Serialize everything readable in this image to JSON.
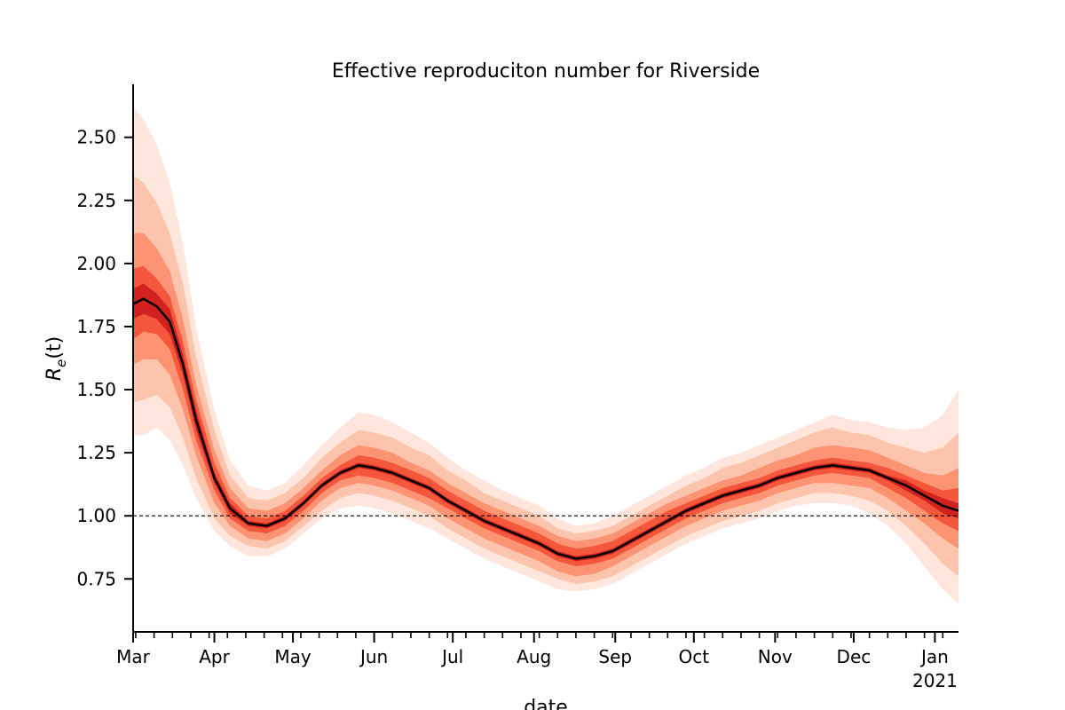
{
  "chart_data": {
    "type": "line",
    "title": "Effective reproduciton number for Riverside",
    "xlabel": "date",
    "ylabel": "R_e(t)",
    "ylabel_parts": {
      "base": "R",
      "subscript": "e",
      "args": "(t)"
    },
    "xlim": [
      "2020-03-01",
      "2021-01-10"
    ],
    "ylim": [
      0.54,
      2.71
    ],
    "y_ticks": [
      "0.75",
      "1.00",
      "1.25",
      "1.50",
      "1.75",
      "2.00",
      "2.25",
      "2.50"
    ],
    "x_major_ticks": [
      {
        "date": "2020-03-01",
        "label": "Mar"
      },
      {
        "date": "2020-04-01",
        "label": "Apr"
      },
      {
        "date": "2020-05-01",
        "label": "May"
      },
      {
        "date": "2020-06-01",
        "label": "Jun"
      },
      {
        "date": "2020-07-01",
        "label": "Jul"
      },
      {
        "date": "2020-08-01",
        "label": "Aug"
      },
      {
        "date": "2020-09-01",
        "label": "Sep"
      },
      {
        "date": "2020-10-01",
        "label": "Oct"
      },
      {
        "date": "2020-11-01",
        "label": "Nov"
      },
      {
        "date": "2020-12-01",
        "label": "Dec"
      },
      {
        "date": "2021-01-01",
        "label": "Jan",
        "sublabel": "2021"
      }
    ],
    "reference_line": {
      "y": 1.0,
      "style": "dashed",
      "color": "#000000"
    },
    "median_color": "#000000",
    "band_colors": [
      "#fee6dc",
      "#fcc4ad",
      "#fc9474",
      "#f4573c",
      "#d1221f"
    ],
    "grid": false,
    "legend": "none",
    "series": [
      {
        "x": [
          "2020-03-01",
          "2020-03-05",
          "2020-03-10",
          "2020-03-15",
          "2020-03-20",
          "2020-03-25",
          "2020-04-01",
          "2020-04-07",
          "2020-04-14",
          "2020-04-21",
          "2020-04-28",
          "2020-05-05",
          "2020-05-12",
          "2020-05-19",
          "2020-05-26",
          "2020-06-01",
          "2020-06-08",
          "2020-06-15",
          "2020-06-22",
          "2020-06-29",
          "2020-07-06",
          "2020-07-13",
          "2020-07-20",
          "2020-07-27",
          "2020-08-03",
          "2020-08-10",
          "2020-08-17",
          "2020-08-24",
          "2020-08-31",
          "2020-09-07",
          "2020-09-14",
          "2020-09-21",
          "2020-09-28",
          "2020-10-05",
          "2020-10-12",
          "2020-10-19",
          "2020-10-26",
          "2020-11-02",
          "2020-11-09",
          "2020-11-16",
          "2020-11-23",
          "2020-11-30",
          "2020-12-07",
          "2020-12-14",
          "2020-12-21",
          "2020-12-28",
          "2021-01-04",
          "2021-01-10"
        ],
        "median": [
          1.84,
          1.86,
          1.83,
          1.77,
          1.6,
          1.38,
          1.15,
          1.03,
          0.97,
          0.96,
          0.99,
          1.05,
          1.12,
          1.17,
          1.2,
          1.19,
          1.17,
          1.14,
          1.11,
          1.06,
          1.02,
          0.98,
          0.95,
          0.92,
          0.89,
          0.85,
          0.83,
          0.84,
          0.86,
          0.9,
          0.94,
          0.98,
          1.02,
          1.05,
          1.08,
          1.1,
          1.12,
          1.15,
          1.17,
          1.19,
          1.2,
          1.19,
          1.18,
          1.15,
          1.12,
          1.08,
          1.04,
          1.02
        ],
        "bands": [
          {
            "lower": [
              1.32,
              1.32,
              1.35,
              1.3,
              1.2,
              1.07,
              0.94,
              0.88,
              0.84,
              0.84,
              0.87,
              0.93,
              0.99,
              1.03,
              1.04,
              1.03,
              1.01,
              0.98,
              0.95,
              0.91,
              0.87,
              0.83,
              0.8,
              0.77,
              0.74,
              0.71,
              0.7,
              0.71,
              0.73,
              0.77,
              0.81,
              0.85,
              0.89,
              0.92,
              0.95,
              0.97,
              0.99,
              1.02,
              1.04,
              1.05,
              1.05,
              1.04,
              1.01,
              0.96,
              0.89,
              0.8,
              0.71,
              0.65
            ],
            "upper": [
              2.62,
              2.57,
              2.47,
              2.32,
              2.08,
              1.75,
              1.42,
              1.22,
              1.12,
              1.1,
              1.13,
              1.2,
              1.28,
              1.35,
              1.41,
              1.4,
              1.37,
              1.33,
              1.29,
              1.23,
              1.18,
              1.14,
              1.1,
              1.07,
              1.04,
              0.99,
              0.96,
              0.97,
              1.0,
              1.04,
              1.08,
              1.12,
              1.16,
              1.19,
              1.23,
              1.25,
              1.28,
              1.31,
              1.34,
              1.37,
              1.4,
              1.38,
              1.37,
              1.35,
              1.34,
              1.35,
              1.4,
              1.5
            ]
          },
          {
            "lower": [
              1.45,
              1.46,
              1.48,
              1.43,
              1.31,
              1.15,
              0.99,
              0.92,
              0.88,
              0.87,
              0.9,
              0.96,
              1.02,
              1.07,
              1.09,
              1.08,
              1.06,
              1.03,
              1.0,
              0.95,
              0.91,
              0.87,
              0.84,
              0.81,
              0.78,
              0.75,
              0.73,
              0.74,
              0.76,
              0.8,
              0.84,
              0.88,
              0.92,
              0.95,
              0.98,
              1.0,
              1.02,
              1.05,
              1.07,
              1.09,
              1.09,
              1.08,
              1.06,
              1.02,
              0.96,
              0.89,
              0.81,
              0.76
            ],
            "upper": [
              2.35,
              2.32,
              2.24,
              2.12,
              1.92,
              1.63,
              1.34,
              1.16,
              1.07,
              1.06,
              1.09,
              1.15,
              1.23,
              1.29,
              1.34,
              1.33,
              1.31,
              1.27,
              1.24,
              1.18,
              1.14,
              1.09,
              1.06,
              1.03,
              1.0,
              0.95,
              0.93,
              0.94,
              0.96,
              1.0,
              1.04,
              1.08,
              1.12,
              1.15,
              1.19,
              1.21,
              1.24,
              1.27,
              1.3,
              1.33,
              1.35,
              1.33,
              1.32,
              1.29,
              1.27,
              1.25,
              1.27,
              1.33
            ]
          },
          {
            "lower": [
              1.6,
              1.62,
              1.62,
              1.56,
              1.42,
              1.24,
              1.05,
              0.96,
              0.91,
              0.9,
              0.93,
              0.99,
              1.06,
              1.11,
              1.13,
              1.12,
              1.1,
              1.07,
              1.04,
              0.99,
              0.95,
              0.91,
              0.88,
              0.85,
              0.82,
              0.78,
              0.76,
              0.77,
              0.8,
              0.84,
              0.88,
              0.92,
              0.96,
              0.99,
              1.02,
              1.04,
              1.06,
              1.09,
              1.11,
              1.13,
              1.13,
              1.12,
              1.11,
              1.07,
              1.02,
              0.97,
              0.91,
              0.87
            ],
            "upper": [
              2.12,
              2.12,
              2.06,
              1.97,
              1.78,
              1.52,
              1.26,
              1.11,
              1.03,
              1.02,
              1.05,
              1.11,
              1.18,
              1.24,
              1.28,
              1.27,
              1.25,
              1.21,
              1.18,
              1.13,
              1.09,
              1.05,
              1.02,
              0.99,
              0.96,
              0.92,
              0.9,
              0.91,
              0.93,
              0.97,
              1.01,
              1.05,
              1.08,
              1.11,
              1.14,
              1.16,
              1.19,
              1.22,
              1.24,
              1.27,
              1.28,
              1.27,
              1.26,
              1.23,
              1.2,
              1.17,
              1.16,
              1.19
            ]
          },
          {
            "lower": [
              1.7,
              1.73,
              1.72,
              1.66,
              1.5,
              1.3,
              1.1,
              0.99,
              0.94,
              0.93,
              0.96,
              1.02,
              1.09,
              1.14,
              1.16,
              1.15,
              1.13,
              1.1,
              1.07,
              1.03,
              0.99,
              0.95,
              0.92,
              0.89,
              0.86,
              0.82,
              0.8,
              0.81,
              0.83,
              0.87,
              0.91,
              0.95,
              0.99,
              1.02,
              1.05,
              1.07,
              1.09,
              1.12,
              1.14,
              1.16,
              1.17,
              1.16,
              1.15,
              1.11,
              1.07,
              1.02,
              0.97,
              0.94
            ],
            "upper": [
              1.98,
              1.99,
              1.94,
              1.87,
              1.69,
              1.46,
              1.21,
              1.07,
              1.0,
              0.99,
              1.02,
              1.08,
              1.15,
              1.2,
              1.24,
              1.23,
              1.21,
              1.18,
              1.15,
              1.1,
              1.06,
              1.02,
              0.99,
              0.96,
              0.93,
              0.89,
              0.87,
              0.88,
              0.9,
              0.94,
              0.98,
              1.02,
              1.05,
              1.08,
              1.11,
              1.13,
              1.15,
              1.18,
              1.2,
              1.22,
              1.23,
              1.22,
              1.21,
              1.19,
              1.16,
              1.13,
              1.1,
              1.11
            ]
          },
          {
            "lower": [
              1.78,
              1.8,
              1.78,
              1.72,
              1.56,
              1.34,
              1.13,
              1.01,
              0.96,
              0.95,
              0.98,
              1.04,
              1.11,
              1.16,
              1.19,
              1.18,
              1.16,
              1.13,
              1.1,
              1.05,
              1.01,
              0.97,
              0.94,
              0.91,
              0.88,
              0.84,
              0.82,
              0.83,
              0.85,
              0.89,
              0.93,
              0.97,
              1.01,
              1.04,
              1.07,
              1.09,
              1.11,
              1.14,
              1.16,
              1.18,
              1.19,
              1.18,
              1.17,
              1.14,
              1.1,
              1.06,
              1.01,
              0.99
            ],
            "upper": [
              1.9,
              1.92,
              1.88,
              1.82,
              1.64,
              1.42,
              1.17,
              1.05,
              0.98,
              0.97,
              1.0,
              1.06,
              1.13,
              1.18,
              1.21,
              1.2,
              1.18,
              1.15,
              1.12,
              1.07,
              1.03,
              0.99,
              0.96,
              0.93,
              0.9,
              0.86,
              0.84,
              0.85,
              0.87,
              0.91,
              0.95,
              0.99,
              1.03,
              1.06,
              1.09,
              1.11,
              1.13,
              1.16,
              1.18,
              1.2,
              1.21,
              1.2,
              1.19,
              1.16,
              1.14,
              1.1,
              1.07,
              1.05
            ]
          }
        ]
      }
    ]
  }
}
